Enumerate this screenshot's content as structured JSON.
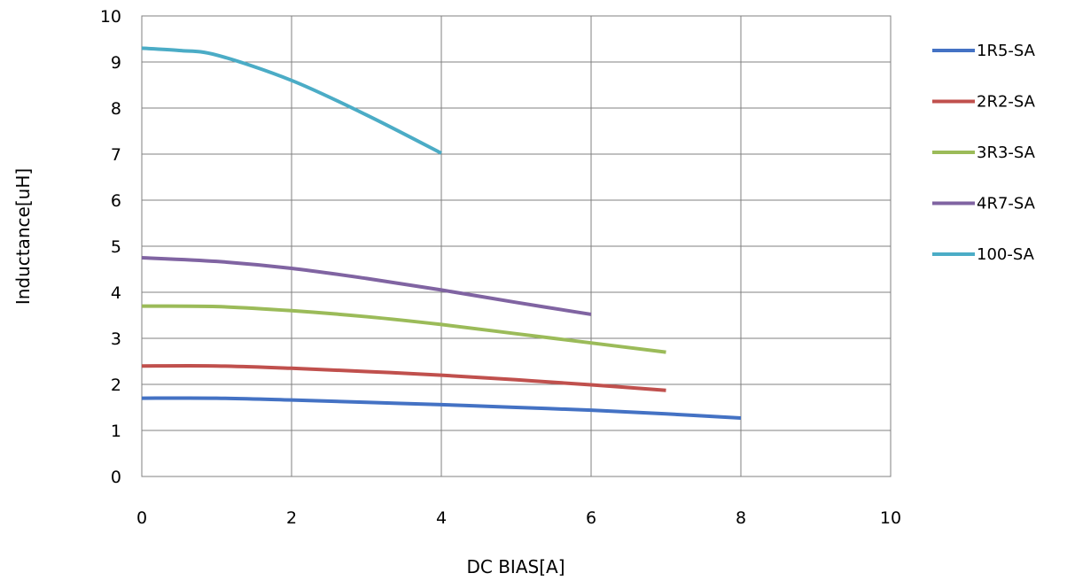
{
  "chart_data": {
    "type": "line",
    "xlabel": "DC BIAS[A]",
    "ylabel": "Inductance[uH]",
    "xlim": [
      0,
      10
    ],
    "ylim": [
      0,
      10
    ],
    "xticks": [
      "0",
      "2",
      "4",
      "6",
      "8",
      "10"
    ],
    "yticks": [
      "0",
      "1",
      "2",
      "3",
      "4",
      "5",
      "6",
      "7",
      "8",
      "9",
      "10"
    ],
    "grid": true,
    "legend_position": "right",
    "series": [
      {
        "name": "1R5-SA",
        "color": "#4472C4",
        "points": [
          [
            0,
            1.7
          ],
          [
            1,
            1.7
          ],
          [
            2,
            1.66
          ],
          [
            3,
            1.61
          ],
          [
            4,
            1.56
          ],
          [
            5,
            1.5
          ],
          [
            6,
            1.44
          ],
          [
            7,
            1.36
          ],
          [
            8,
            1.27
          ]
        ]
      },
      {
        "name": "2R2-SA",
        "color": "#C0504D",
        "points": [
          [
            0,
            2.4
          ],
          [
            1,
            2.4
          ],
          [
            2,
            2.35
          ],
          [
            3,
            2.28
          ],
          [
            4,
            2.2
          ],
          [
            5,
            2.1
          ],
          [
            6,
            1.99
          ],
          [
            7,
            1.87
          ]
        ]
      },
      {
        "name": "3R3-SA",
        "color": "#9BBB59",
        "points": [
          [
            0,
            3.7
          ],
          [
            1,
            3.69
          ],
          [
            2,
            3.6
          ],
          [
            3,
            3.47
          ],
          [
            4,
            3.3
          ],
          [
            5,
            3.1
          ],
          [
            6,
            2.9
          ],
          [
            7,
            2.7
          ]
        ]
      },
      {
        "name": "4R7-SA",
        "color": "#8064A2",
        "points": [
          [
            0,
            4.75
          ],
          [
            1,
            4.67
          ],
          [
            2,
            4.52
          ],
          [
            3,
            4.3
          ],
          [
            4,
            4.05
          ],
          [
            5,
            3.78
          ],
          [
            6,
            3.52
          ]
        ]
      },
      {
        "name": "100-SA",
        "color": "#4BACC6",
        "points": [
          [
            0,
            9.3
          ],
          [
            0.5,
            9.25
          ],
          [
            1,
            9.15
          ],
          [
            2,
            8.6
          ],
          [
            3,
            7.85
          ],
          [
            4,
            7.02
          ]
        ]
      }
    ]
  }
}
